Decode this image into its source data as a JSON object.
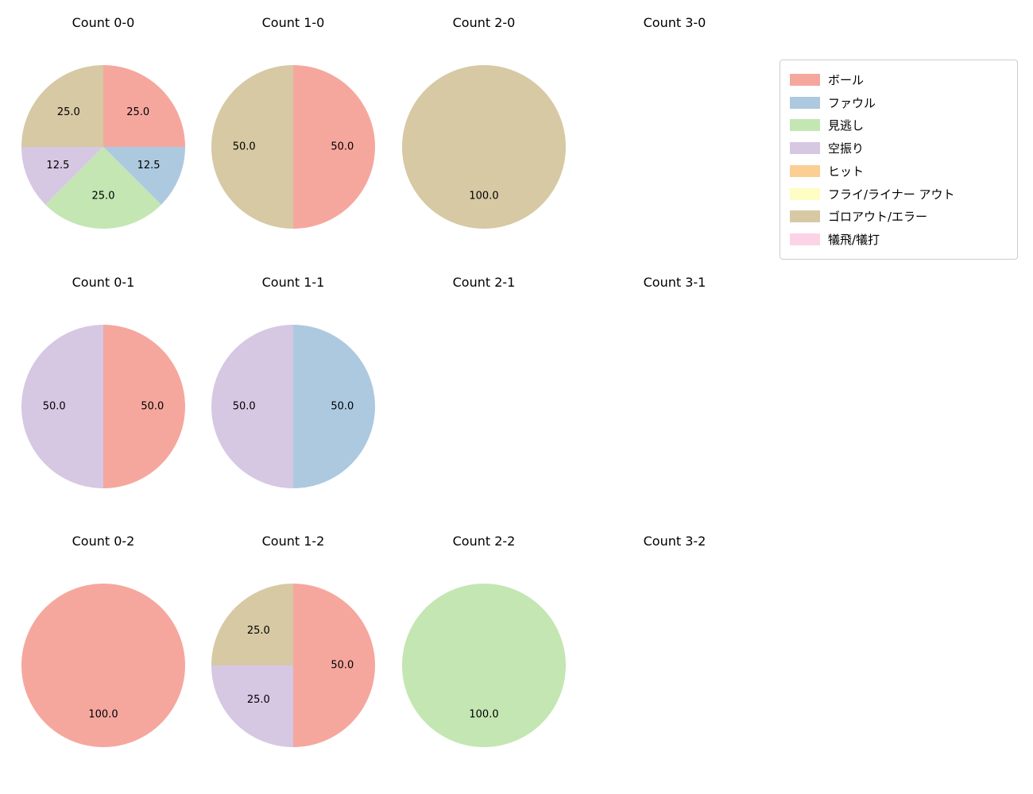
{
  "legend": {
    "items": [
      {
        "label": "ボール",
        "color": "#f5a79e"
      },
      {
        "label": "ファウル",
        "color": "#adc9e0"
      },
      {
        "label": "見逃し",
        "color": "#c3e6b3"
      },
      {
        "label": "空振り",
        "color": "#d6c7e3"
      },
      {
        "label": "ヒット",
        "color": "#fbcf93"
      },
      {
        "label": "フライ/ライナー アウト",
        "color": "#fdfdc4"
      },
      {
        "label": "ゴロアウト/エラー",
        "color": "#d6c9a3"
      },
      {
        "label": "犠飛/犠打",
        "color": "#fcd3e6"
      }
    ]
  },
  "chart_data": [
    {
      "type": "pie",
      "title": "Count 0-0",
      "slices": [
        {
          "label": "ボール",
          "value": 25.0
        },
        {
          "label": "ファウル",
          "value": 12.5
        },
        {
          "label": "見逃し",
          "value": 25.0
        },
        {
          "label": "空振り",
          "value": 12.5
        },
        {
          "label": "ゴロアウト/エラー",
          "value": 25.0
        }
      ]
    },
    {
      "type": "pie",
      "title": "Count 1-0",
      "slices": [
        {
          "label": "ボール",
          "value": 50.0
        },
        {
          "label": "ゴロアウト/エラー",
          "value": 50.0
        }
      ]
    },
    {
      "type": "pie",
      "title": "Count 2-0",
      "slices": [
        {
          "label": "ゴロアウト/エラー",
          "value": 100.0
        }
      ]
    },
    {
      "type": "pie",
      "title": "Count 3-0",
      "slices": []
    },
    {
      "type": "pie",
      "title": "Count 0-1",
      "slices": [
        {
          "label": "ボール",
          "value": 50.0
        },
        {
          "label": "空振り",
          "value": 50.0
        }
      ]
    },
    {
      "type": "pie",
      "title": "Count 1-1",
      "slices": [
        {
          "label": "ファウル",
          "value": 50.0
        },
        {
          "label": "空振り",
          "value": 50.0
        }
      ]
    },
    {
      "type": "pie",
      "title": "Count 2-1",
      "slices": []
    },
    {
      "type": "pie",
      "title": "Count 3-1",
      "slices": []
    },
    {
      "type": "pie",
      "title": "Count 0-2",
      "slices": [
        {
          "label": "ボール",
          "value": 100.0
        }
      ]
    },
    {
      "type": "pie",
      "title": "Count 1-2",
      "slices": [
        {
          "label": "ボール",
          "value": 50.0
        },
        {
          "label": "空振り",
          "value": 25.0
        },
        {
          "label": "ゴロアウト/エラー",
          "value": 25.0
        }
      ]
    },
    {
      "type": "pie",
      "title": "Count 2-2",
      "slices": [
        {
          "label": "見逃し",
          "value": 100.0
        }
      ]
    },
    {
      "type": "pie",
      "title": "Count 3-2",
      "slices": []
    }
  ]
}
